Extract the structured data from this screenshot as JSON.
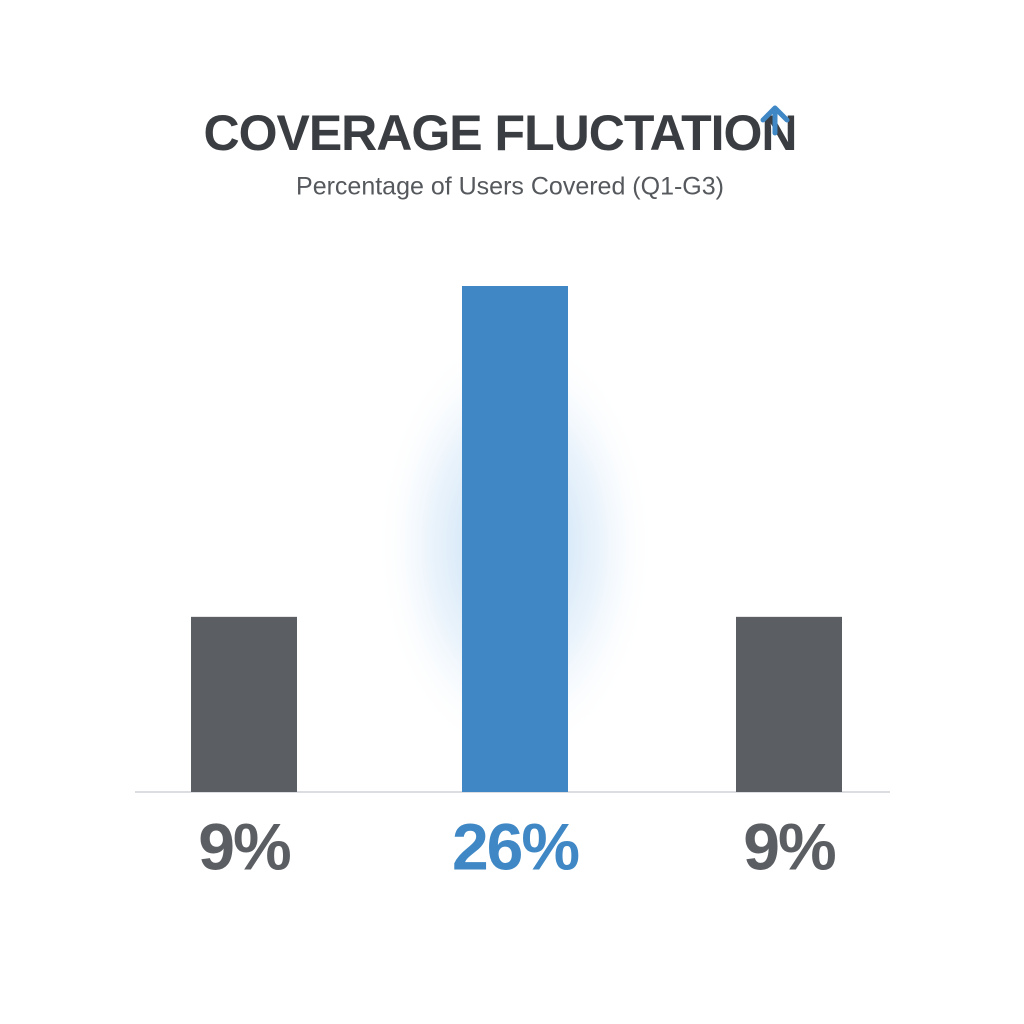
{
  "chart_data": {
    "type": "bar",
    "title": "COVERAGE FLUCTATION",
    "subtitle": "Percentage of Users Covered (Q1-G3)",
    "categories": [
      null,
      null,
      null
    ],
    "values": [
      9,
      26,
      9
    ],
    "value_labels": [
      "9%",
      "26%",
      "9%"
    ],
    "colors": [
      "#5b5e62",
      "#3f88c5",
      "#5b5e62"
    ]
  }
}
